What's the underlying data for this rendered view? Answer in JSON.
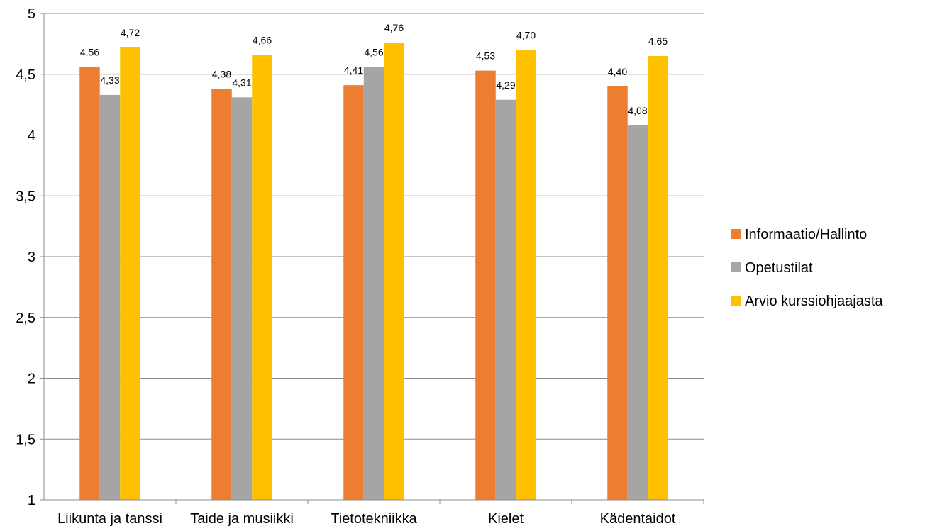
{
  "chart_data": {
    "type": "bar",
    "categories": [
      "Liikunta ja tanssi",
      "Taide ja musiikki",
      "Tietotekniikka",
      "Kielet",
      "Kädentaidot"
    ],
    "series": [
      {
        "name": "Informaatio/Hallinto",
        "color": "#ED7D31",
        "values": [
          4.56,
          4.38,
          4.41,
          4.53,
          4.4
        ],
        "labels": [
          "4,56",
          "4,38",
          "4,41",
          "4,53",
          "4,40"
        ]
      },
      {
        "name": "Opetustilat",
        "color": "#A5A5A5",
        "values": [
          4.33,
          4.31,
          4.56,
          4.29,
          4.08
        ],
        "labels": [
          "4,33",
          "4,31",
          "4,56",
          "4,29",
          "4,08"
        ]
      },
      {
        "name": "Arvio kurssiohjaajasta",
        "color": "#FFC000",
        "values": [
          4.72,
          4.66,
          4.76,
          4.7,
          4.65
        ],
        "labels": [
          "4,72",
          "4,66",
          "4,76",
          "4,70",
          "4,65"
        ]
      }
    ],
    "ylim": [
      1,
      5
    ],
    "yticks": [
      1,
      1.5,
      2,
      2.5,
      3,
      3.5,
      4,
      4.5,
      5
    ],
    "ytick_labels": [
      "1",
      "1,5",
      "2",
      "2,5",
      "3",
      "3,5",
      "4",
      "4,5",
      "5"
    ],
    "grid": true,
    "legend_position": "right"
  }
}
